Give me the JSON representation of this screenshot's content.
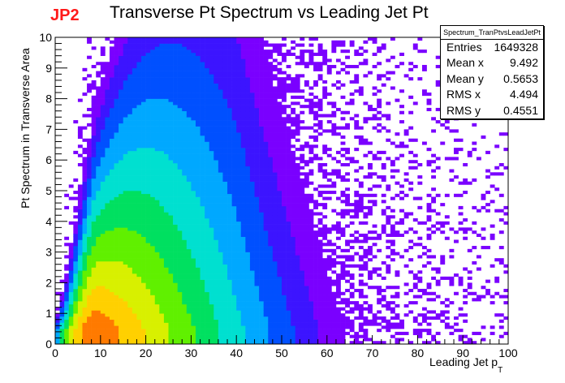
{
  "title": "Transverse Pt Spectrum vs Leading Jet Pt",
  "tag": "JP2",
  "stats": {
    "name": "Spectrum_TranPtvsLeadJetPt",
    "rows": [
      {
        "label": "Entries",
        "value": "1649328"
      },
      {
        "label": "Mean x",
        "value": "9.492"
      },
      {
        "label": "Mean y",
        "value": "0.5653"
      },
      {
        "label": "RMS x",
        "value": "4.494"
      },
      {
        "label": "RMS y",
        "value": "0.4551"
      }
    ]
  },
  "chart_data": {
    "type": "heatmap",
    "title": "Transverse Pt Spectrum vs Leading Jet Pt",
    "xlabel": "Leading Jet p",
    "xlabel_subscript": "T",
    "ylabel": "Pt Spectrum in Transverse  Area",
    "xlim": [
      0,
      100
    ],
    "ylim": [
      0,
      10
    ],
    "x_ticks": [
      "0",
      "10",
      "20",
      "30",
      "40",
      "50",
      "60",
      "70",
      "80",
      "90",
      "100"
    ],
    "y_ticks": [
      "0",
      "1",
      "2",
      "3",
      "4",
      "5",
      "6",
      "7",
      "8",
      "9",
      "10"
    ],
    "bins_x": 100,
    "bins_y": 100,
    "colormap": [
      "#7a00ff",
      "#3c14ff",
      "#0050ff",
      "#00a8ff",
      "#00e0d0",
      "#00e060",
      "#60f000",
      "#d8f000",
      "#ffd000",
      "#ff7a00",
      "#ff2000"
    ],
    "distribution": {
      "x_mode": 9,
      "x_width": 14,
      "x_cutoff": 100,
      "y_mode": 0.4,
      "y_spread": 0.55
    },
    "entries": 1649328,
    "mean_x": 9.492,
    "mean_y": 0.5653,
    "rms_x": 4.494,
    "rms_y": 0.4551
  }
}
